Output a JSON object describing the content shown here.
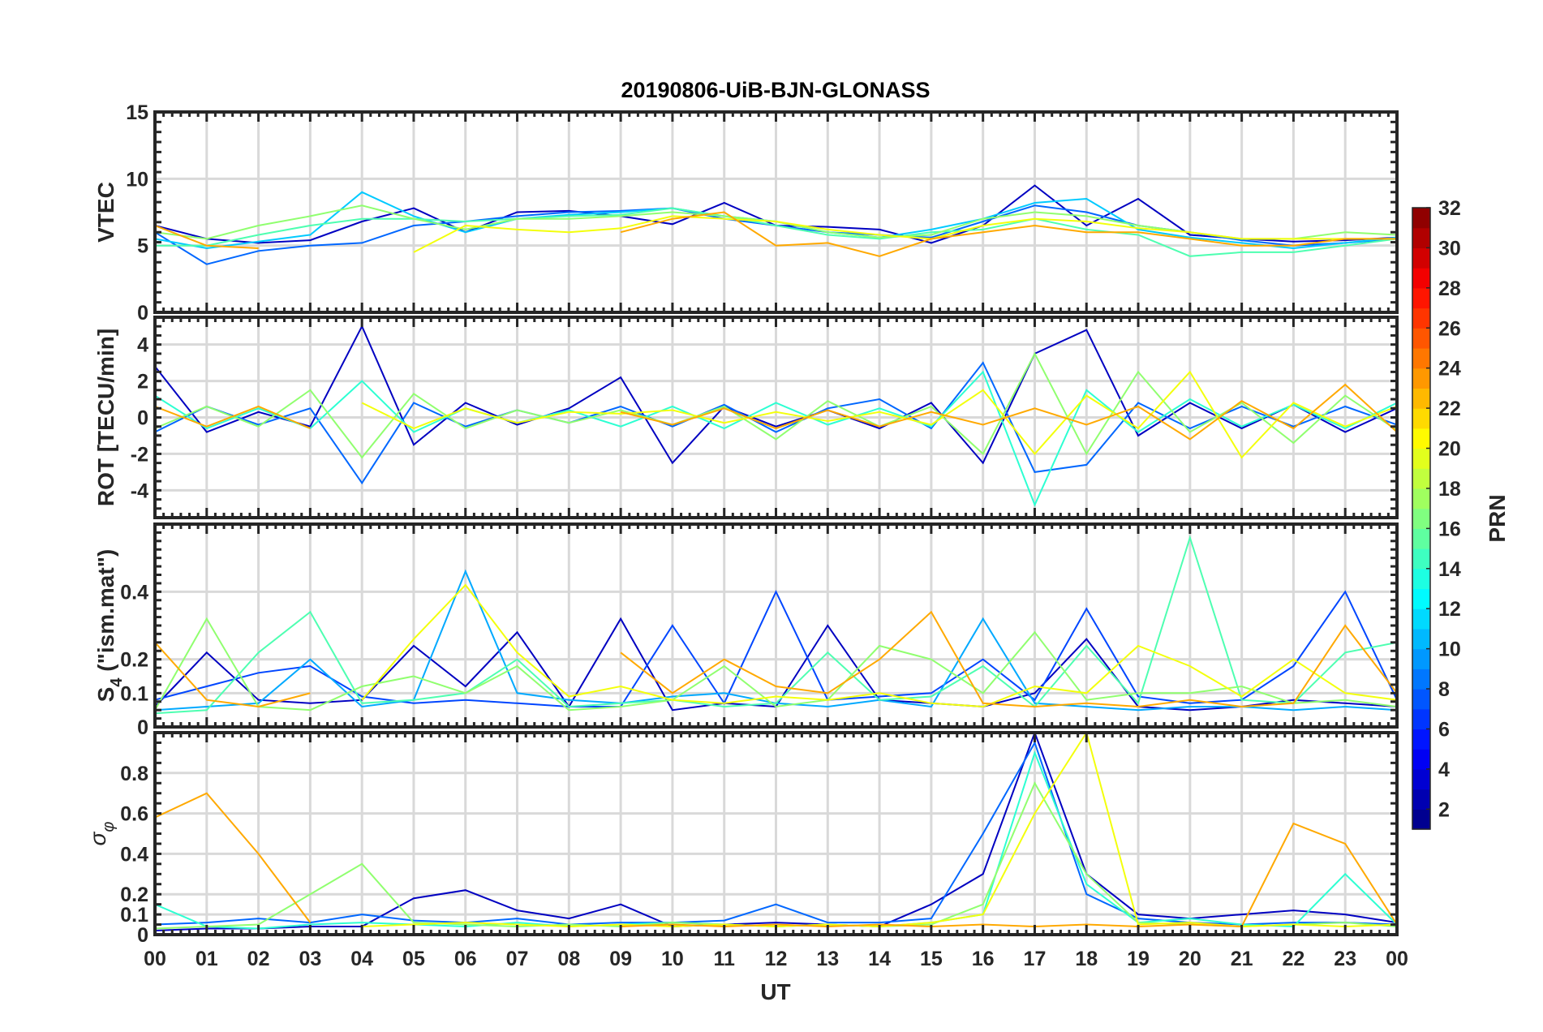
{
  "chart_data": {
    "type": "line",
    "title": "20190806-UiB-BJN-GLONASS",
    "xlabel": "UT",
    "xlim": [
      0,
      24
    ],
    "x_tick_labels": [
      "00",
      "01",
      "02",
      "03",
      "04",
      "05",
      "06",
      "07",
      "08",
      "09",
      "10",
      "11",
      "12",
      "13",
      "14",
      "15",
      "16",
      "17",
      "18",
      "19",
      "20",
      "21",
      "22",
      "23",
      "00"
    ],
    "x": [
      0,
      1,
      2,
      3,
      4,
      5,
      6,
      7,
      8,
      9,
      10,
      11,
      12,
      13,
      14,
      15,
      16,
      17,
      18,
      19,
      20,
      21,
      22,
      23,
      24
    ],
    "grid": true,
    "colorbar": {
      "label": "PRN",
      "range": [
        1,
        32
      ],
      "colormap": "jet",
      "tick_labels": [
        "2",
        "4",
        "6",
        "8",
        "10",
        "12",
        "14",
        "16",
        "18",
        "20",
        "22",
        "24",
        "26",
        "28",
        "30",
        "32"
      ],
      "tick_values": [
        2,
        4,
        6,
        8,
        10,
        12,
        14,
        16,
        18,
        20,
        22,
        24,
        26,
        28,
        30,
        32
      ]
    },
    "panels": [
      {
        "ylabel": "VTEC",
        "ylim": [
          0,
          15
        ],
        "y_ticks": [
          0,
          5,
          10,
          15
        ],
        "y_tick_labels": [
          "0",
          "5",
          "10",
          "15"
        ],
        "series": [
          {
            "prn": 3,
            "values": [
              6.5,
              5.5,
              5.2,
              5.4,
              6.8,
              7.8,
              6.0,
              7.5,
              7.6,
              7.2,
              6.6,
              8.2,
              6.5,
              6.4,
              6.2,
              5.2,
              6.5,
              9.5,
              6.5,
              8.5,
              5.8,
              5.5,
              5.3,
              5.4,
              5.6
            ]
          },
          {
            "prn": 8,
            "values": [
              6.0,
              3.6,
              4.6,
              5.0,
              5.2,
              6.5,
              6.8,
              7.2,
              7.5,
              7.6,
              7.8,
              7.0,
              6.5,
              6.0,
              5.8,
              5.6,
              6.8,
              8.0,
              7.5,
              6.5,
              6.0,
              5.4,
              5.0,
              5.2,
              5.5
            ]
          },
          {
            "prn": 11,
            "values": [
              5.5,
              4.8,
              5.3,
              5.8,
              9.0,
              7.2,
              6.0,
              7.0,
              7.3,
              7.5,
              7.8,
              7.2,
              6.8,
              6.0,
              5.6,
              6.2,
              7.0,
              8.2,
              8.5,
              6.2,
              5.6,
              5.2,
              4.8,
              5.2,
              5.6
            ]
          },
          {
            "prn": 15,
            "values": [
              5.0,
              5.0,
              5.8,
              6.5,
              7.0,
              7.0,
              6.8,
              7.0,
              7.2,
              7.3,
              7.8,
              7.2,
              6.5,
              5.8,
              5.5,
              6.0,
              6.2,
              7.0,
              6.2,
              5.8,
              4.2,
              4.5,
              4.5,
              5.0,
              5.5
            ]
          },
          {
            "prn": 17,
            "values": [
              6.0,
              5.5,
              6.5,
              7.2,
              8.0,
              7.0,
              6.2,
              7.0,
              7.0,
              7.2,
              7.5,
              7.2,
              6.8,
              6.0,
              5.6,
              5.8,
              7.0,
              7.5,
              7.2,
              6.5,
              6.0,
              5.5,
              5.5,
              6.0,
              5.8
            ]
          },
          {
            "prn": 20,
            "values": [
              null,
              null,
              null,
              null,
              null,
              4.5,
              6.5,
              6.2,
              6.0,
              6.3,
              7.2,
              7.0,
              6.8,
              6.2,
              5.8,
              5.5,
              6.5,
              7.0,
              6.8,
              6.3,
              6.0,
              5.5,
              5.5,
              5.5,
              5.5
            ]
          },
          {
            "prn": 23,
            "values": [
              6.5,
              5.0,
              4.8,
              null,
              null,
              null,
              null,
              null,
              null,
              6.0,
              7.0,
              7.5,
              5.0,
              5.2,
              4.2,
              5.5,
              6.0,
              6.5,
              6.0,
              6.0,
              5.5,
              5.0,
              5.0,
              5.5,
              5.5
            ]
          }
        ]
      },
      {
        "ylabel": "ROT [TECU/min]",
        "ylim": [
          -5.5,
          5.5
        ],
        "y_ticks": [
          -4,
          -2,
          0,
          2,
          4
        ],
        "y_tick_labels": [
          "-4",
          "-2",
          "0",
          "2",
          "4"
        ],
        "series": [
          {
            "prn": 3,
            "values": [
              2.8,
              -0.8,
              0.3,
              -0.5,
              5.0,
              -1.5,
              0.8,
              -0.4,
              0.5,
              2.2,
              -2.5,
              0.6,
              -0.5,
              0.4,
              -0.6,
              0.8,
              -2.5,
              3.5,
              4.8,
              -1.0,
              0.8,
              -0.6,
              0.7,
              -0.8,
              0.5
            ]
          },
          {
            "prn": 8,
            "values": [
              -0.8,
              0.6,
              -0.4,
              0.5,
              -3.6,
              0.8,
              -0.5,
              0.4,
              -0.3,
              0.6,
              -0.5,
              0.7,
              -0.8,
              0.5,
              1.0,
              -0.6,
              3.0,
              -3.0,
              -2.6,
              0.8,
              -0.6,
              0.6,
              -0.5,
              0.6,
              -0.4
            ]
          },
          {
            "prn": 14,
            "values": [
              1.2,
              -0.6,
              0.5,
              -0.6,
              2.0,
              -0.8,
              0.5,
              -0.3,
              0.4,
              -0.5,
              0.6,
              -0.6,
              0.8,
              -0.4,
              0.5,
              -0.5,
              2.5,
              -4.8,
              1.5,
              -0.8,
              1.0,
              -0.5,
              0.7,
              -0.6,
              0.8
            ]
          },
          {
            "prn": 17,
            "values": [
              -0.6,
              0.6,
              -0.5,
              1.5,
              -2.2,
              1.3,
              -0.6,
              0.4,
              -0.3,
              0.4,
              -0.4,
              0.6,
              -1.2,
              0.9,
              -0.5,
              0.6,
              -2.0,
              3.5,
              -2.0,
              2.5,
              -0.8,
              0.8,
              -1.4,
              1.2,
              -0.7
            ]
          },
          {
            "prn": 20,
            "values": [
              null,
              null,
              null,
              null,
              0.8,
              -0.6,
              0.5,
              -0.3,
              0.3,
              0.2,
              0.4,
              -0.3,
              0.3,
              -0.2,
              0.3,
              -0.4,
              1.5,
              -2.0,
              1.2,
              -0.6,
              2.5,
              -2.2,
              0.8,
              -0.5,
              0.6
            ]
          },
          {
            "prn": 23,
            "values": [
              0.6,
              -0.5,
              0.6,
              -0.6,
              null,
              null,
              null,
              null,
              null,
              0.3,
              -0.4,
              0.5,
              -0.6,
              0.4,
              -0.5,
              0.3,
              -0.4,
              0.5,
              -0.4,
              0.6,
              -1.2,
              0.9,
              -0.6,
              1.8,
              -0.8
            ]
          }
        ]
      },
      {
        "ylabel": "S4 (\"ism.mat\")",
        "ylabel_main": "S",
        "ylabel_sub": "4",
        "ylabel_rest": " (\"ism.mat\")",
        "ylim": [
          0,
          0.6
        ],
        "y_ticks": [
          0,
          0.1,
          0.2,
          0.4
        ],
        "y_tick_labels": [
          "0",
          "0.1",
          "0.2",
          "0.4"
        ],
        "series": [
          {
            "prn": 3,
            "values": [
              0.06,
              0.22,
              0.08,
              0.07,
              0.08,
              0.24,
              0.12,
              0.28,
              0.06,
              0.32,
              0.05,
              0.07,
              0.06,
              0.3,
              0.08,
              0.07,
              0.06,
              0.1,
              0.26,
              0.06,
              0.05,
              0.06,
              0.08,
              0.07,
              0.06
            ]
          },
          {
            "prn": 7,
            "values": [
              0.08,
              0.12,
              0.16,
              0.18,
              0.09,
              0.07,
              0.08,
              0.07,
              0.06,
              0.06,
              0.3,
              0.07,
              0.4,
              0.08,
              0.09,
              0.1,
              0.2,
              0.08,
              0.35,
              0.09,
              0.07,
              0.08,
              0.18,
              0.4,
              0.08
            ]
          },
          {
            "prn": 10,
            "values": [
              0.05,
              0.06,
              0.07,
              0.2,
              0.06,
              0.08,
              0.46,
              0.1,
              0.08,
              0.07,
              0.09,
              0.1,
              0.07,
              0.06,
              0.08,
              0.06,
              0.32,
              0.07,
              0.06,
              0.05,
              0.06,
              0.06,
              0.05,
              0.06,
              0.05
            ]
          },
          {
            "prn": 15,
            "values": [
              0.04,
              0.05,
              0.22,
              0.34,
              0.07,
              0.08,
              0.1,
              0.2,
              0.06,
              0.07,
              0.08,
              0.06,
              0.07,
              0.22,
              0.08,
              0.09,
              0.18,
              0.06,
              0.24,
              0.07,
              0.56,
              0.08,
              0.07,
              0.22,
              0.25
            ]
          },
          {
            "prn": 17,
            "values": [
              0.05,
              0.32,
              0.06,
              0.05,
              0.12,
              0.15,
              0.1,
              0.18,
              0.05,
              0.06,
              0.08,
              0.18,
              0.06,
              0.08,
              0.24,
              0.2,
              0.1,
              0.28,
              0.08,
              0.1,
              0.1,
              0.12,
              0.07,
              0.08,
              0.06
            ]
          },
          {
            "prn": 20,
            "values": [
              null,
              null,
              null,
              null,
              0.08,
              0.26,
              0.42,
              0.22,
              0.09,
              0.12,
              0.08,
              0.07,
              0.09,
              0.08,
              0.1,
              0.07,
              0.06,
              0.12,
              0.1,
              0.24,
              0.18,
              0.09,
              0.2,
              0.1,
              0.08
            ]
          },
          {
            "prn": 23,
            "values": [
              0.25,
              0.08,
              0.06,
              0.1,
              null,
              null,
              null,
              null,
              null,
              0.22,
              0.1,
              0.2,
              0.12,
              0.1,
              0.2,
              0.34,
              0.07,
              0.06,
              0.07,
              0.06,
              0.08,
              0.06,
              0.07,
              0.3,
              0.1
            ]
          }
        ]
      },
      {
        "ylabel": "σφ",
        "ylabel_main": "σ",
        "ylabel_sub": "φ",
        "ylim": [
          0,
          1
        ],
        "y_ticks": [
          0,
          0.1,
          0.2,
          0.4,
          0.6,
          0.8
        ],
        "y_tick_labels": [
          "0",
          "0.1",
          "0.2",
          "0.4",
          "0.6",
          "0.8"
        ],
        "series": [
          {
            "prn": 3,
            "values": [
              0.02,
              0.03,
              0.03,
              0.04,
              0.04,
              0.18,
              0.22,
              0.12,
              0.08,
              0.15,
              0.04,
              0.05,
              0.06,
              0.05,
              0.04,
              0.15,
              0.3,
              1.0,
              0.3,
              0.1,
              0.08,
              0.1,
              0.12,
              0.1,
              0.06
            ]
          },
          {
            "prn": 8,
            "values": [
              0.05,
              0.06,
              0.08,
              0.06,
              0.1,
              0.07,
              0.06,
              0.08,
              0.05,
              0.06,
              0.06,
              0.07,
              0.15,
              0.06,
              0.06,
              0.08,
              0.5,
              0.95,
              0.2,
              0.08,
              0.06,
              0.05,
              0.06,
              0.06,
              0.05
            ]
          },
          {
            "prn": 14,
            "values": [
              0.15,
              0.04,
              0.03,
              0.05,
              0.06,
              0.05,
              0.04,
              0.06,
              0.04,
              0.05,
              0.06,
              0.05,
              0.04,
              0.05,
              0.04,
              0.06,
              0.1,
              0.9,
              0.25,
              0.06,
              0.08,
              0.05,
              0.04,
              0.3,
              0.05
            ]
          },
          {
            "prn": 17,
            "values": [
              0.03,
              0.04,
              0.05,
              0.2,
              0.35,
              0.06,
              0.05,
              0.04,
              0.05,
              0.04,
              0.06,
              0.05,
              0.04,
              0.05,
              0.04,
              0.05,
              0.15,
              0.75,
              0.3,
              0.06,
              0.05,
              0.04,
              0.05,
              0.06,
              0.04
            ]
          },
          {
            "prn": 20,
            "values": [
              null,
              null,
              null,
              null,
              0.04,
              0.05,
              0.06,
              0.05,
              0.04,
              0.05,
              0.04,
              0.05,
              0.04,
              0.05,
              0.04,
              0.06,
              0.1,
              0.6,
              1.0,
              0.05,
              0.06,
              0.04,
              0.05,
              0.04,
              0.05
            ]
          },
          {
            "prn": 23,
            "values": [
              0.58,
              0.7,
              0.4,
              0.06,
              null,
              null,
              null,
              null,
              null,
              0.04,
              0.05,
              0.04,
              0.05,
              0.04,
              0.05,
              0.04,
              0.05,
              0.04,
              0.05,
              0.04,
              0.05,
              0.04,
              0.55,
              0.45,
              0.05
            ]
          }
        ]
      }
    ]
  }
}
